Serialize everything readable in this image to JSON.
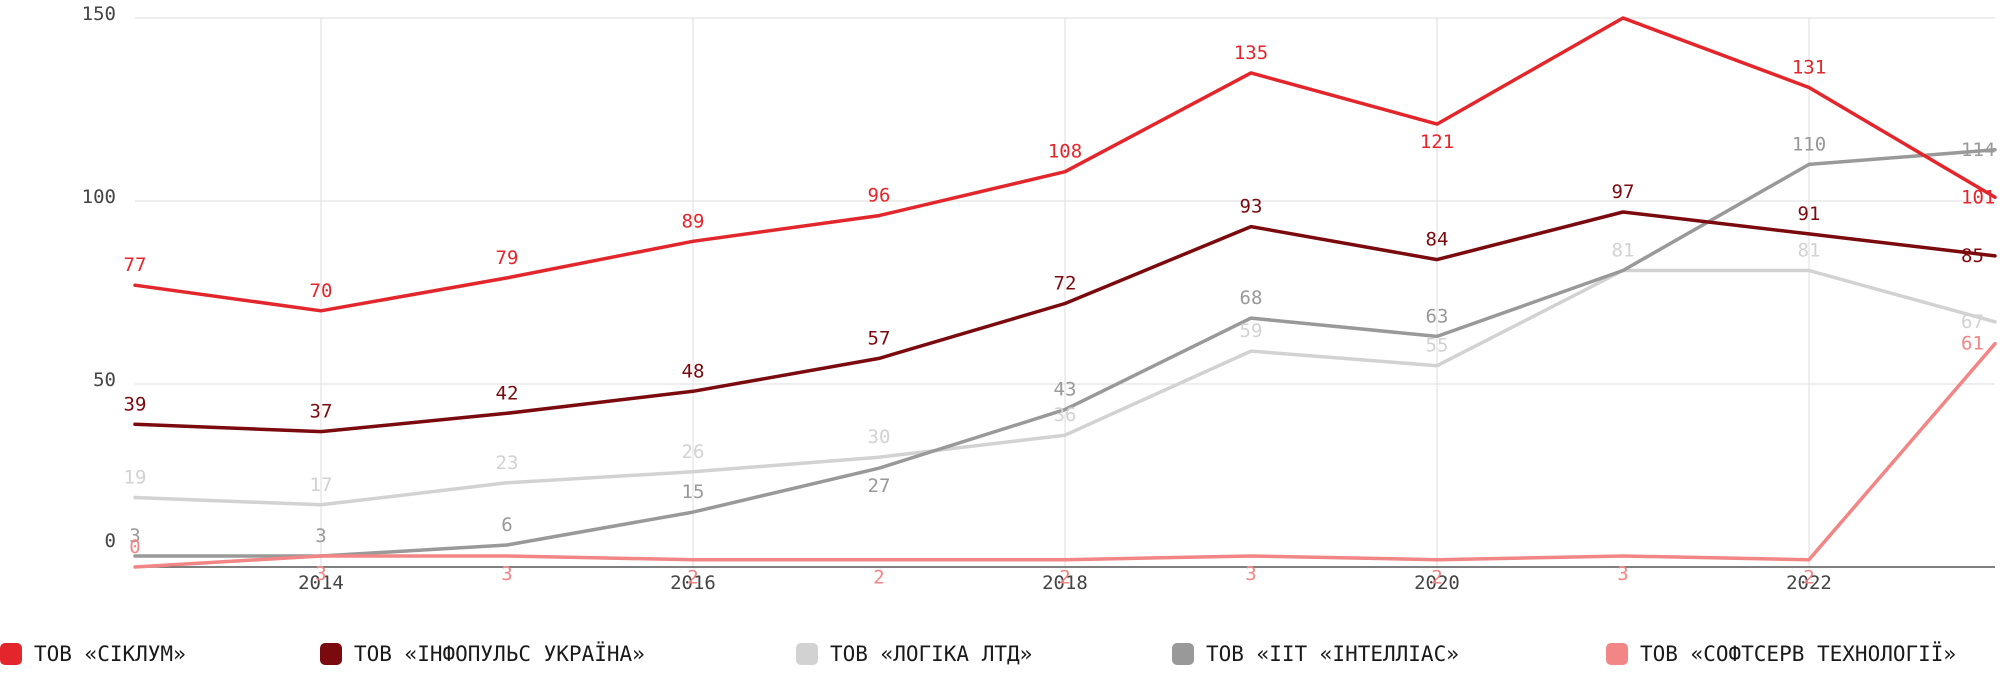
{
  "chart_data": {
    "type": "line",
    "x": [
      2013,
      2014,
      2015,
      2016,
      2017,
      2018,
      2019,
      2020,
      2021,
      2022,
      2023
    ],
    "x_ticks": [
      {
        "value": 2014,
        "label": "2014"
      },
      {
        "value": 2016,
        "label": "2016"
      },
      {
        "value": 2018,
        "label": "2018"
      },
      {
        "value": 2020,
        "label": "2020"
      },
      {
        "value": 2022,
        "label": "2022"
      }
    ],
    "y_ticks": [
      {
        "value": 0,
        "label": "0"
      },
      {
        "value": 50,
        "label": "50"
      },
      {
        "value": 100,
        "label": "100"
      },
      {
        "value": 150,
        "label": "150"
      }
    ],
    "xlim": [
      2013,
      2023
    ],
    "ylim": [
      0,
      150
    ],
    "grid": true,
    "legend_position": "bottom",
    "series": [
      {
        "name": "ТОВ «СІКЛУМ»",
        "color": "#e3262b",
        "values": [
          77,
          70,
          79,
          89,
          96,
          108,
          135,
          121,
          150,
          131,
          101
        ],
        "labels": [
          "77",
          "70",
          "79",
          "89",
          "96",
          "108",
          "135",
          "121",
          "",
          "131",
          "101"
        ],
        "label_pos": [
          "above",
          "above",
          "above",
          "above",
          "above",
          "above",
          "above",
          "below",
          "above",
          "above",
          "right"
        ]
      },
      {
        "name": "ТОВ «ІНФОПУЛЬС УКРАЇНА»",
        "color": "#7a0a0e",
        "values": [
          39,
          37,
          42,
          48,
          57,
          72,
          93,
          84,
          97,
          91,
          85
        ],
        "labels": [
          "39",
          "37",
          "42",
          "48",
          "57",
          "72",
          "93",
          "84",
          "97",
          "91",
          "85"
        ],
        "label_pos": [
          "above",
          "above",
          "above",
          "above",
          "above",
          "above",
          "above",
          "above",
          "above",
          "above",
          "right"
        ]
      },
      {
        "name": "ТОВ «ЛОГІКА ЛТД»",
        "color": "#d2d2d2",
        "values": [
          19,
          17,
          23,
          26,
          30,
          36,
          59,
          55,
          81,
          81,
          67
        ],
        "labels": [
          "19",
          "17",
          "23",
          "26",
          "30",
          "36",
          "59",
          "55",
          "81",
          "81",
          "67"
        ],
        "label_pos": [
          "above",
          "above",
          "above",
          "above",
          "above",
          "above",
          "above",
          "above",
          "above",
          "above",
          "right"
        ]
      },
      {
        "name": "ТОВ «ІІТ «ІНТЕЛЛІАС»",
        "color": "#999999",
        "values": [
          3,
          3,
          6,
          15,
          27,
          43,
          68,
          63,
          81,
          110,
          114
        ],
        "labels": [
          "3",
          "3",
          "6",
          "15",
          "27",
          "43",
          "68",
          "63",
          "",
          "110",
          "114"
        ],
        "label_pos": [
          "above",
          "above",
          "above",
          "above",
          "below",
          "above",
          "above",
          "above",
          "above",
          "above",
          "right"
        ]
      },
      {
        "name": "ТОВ «СОФТСЕРВ ТЕХНОЛОГІЇ»",
        "color": "#f28585",
        "values": [
          0,
          3,
          3,
          2,
          2,
          2,
          3,
          2,
          3,
          2,
          61
        ],
        "labels": [
          "0",
          "3",
          "3",
          "2",
          "2",
          "2",
          "3",
          "2",
          "3",
          "2",
          "61"
        ],
        "label_pos": [
          "above",
          "below",
          "below",
          "below",
          "below",
          "below",
          "below",
          "below",
          "below",
          "below",
          "right"
        ]
      }
    ]
  }
}
